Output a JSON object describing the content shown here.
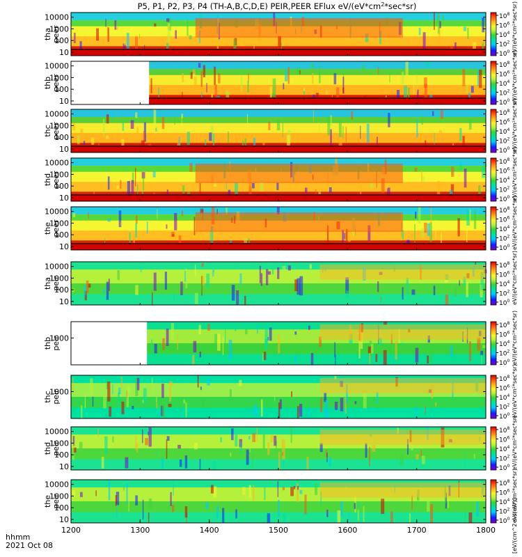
{
  "chart_data": {
    "type": "heatmap",
    "title": "P5, P1, P2, P3, P4 (TH-A,B,C,D,E) PEIR,PEER EFlux eV/(eV*cm",
    "title_sup": "2",
    "title_end": "*sec*sr)",
    "x_ticks": [
      "1200",
      "1300",
      "1400",
      "1500",
      "1600",
      "1700",
      "1800"
    ],
    "x_range": [
      1200,
      1800
    ],
    "x_label_line1": "hhmm",
    "x_label_line2": "2021 Oct 08",
    "log_scale": true,
    "colormap": [
      "#7d00c8",
      "#1a1aff",
      "#00c8ff",
      "#00e0a0",
      "#3cd23c",
      "#b4f03c",
      "#f5f532",
      "#ffb41e",
      "#ff5014",
      "#d20000"
    ],
    "colorbar_tick_labels": [
      "10",
      "10",
      "10",
      "10",
      "10"
    ],
    "colorbar_tick_exps": [
      "8",
      "6",
      "4",
      "2",
      "0"
    ],
    "colorbar_axis_label_top": "eV/(eV*cm²*sec*sr)",
    "colorbar_axis_label_bottom": "[eV/(cm^2-s-sr-eV)]",
    "panels": [
      {
        "probe": "tha",
        "inst": "peer",
        "y_ticks": [
          "10000",
          "1000",
          "100",
          "10"
        ],
        "y_range": [
          5,
          25000
        ],
        "data_start": 1200,
        "bg": "#f5f532"
      },
      {
        "probe": "thb",
        "inst": "peer",
        "y_ticks": [
          "10000",
          "1000",
          "100",
          "10"
        ],
        "y_range": [
          5,
          25000
        ],
        "data_start": 1313,
        "bg": "#ffb41e"
      },
      {
        "probe": "thc",
        "inst": "peer",
        "y_ticks": [
          "10000",
          "1000",
          "100",
          "10"
        ],
        "y_range": [
          5,
          25000
        ],
        "data_start": 1200,
        "bg": "#ffb41e"
      },
      {
        "probe": "thd",
        "inst": "peer",
        "y_ticks": [
          "10000",
          "1000",
          "100",
          "10"
        ],
        "y_range": [
          5,
          25000
        ],
        "data_start": 1200,
        "bg": "#f5f532"
      },
      {
        "probe": "the",
        "inst": "peer",
        "y_ticks": [
          "10000",
          "1000",
          "100",
          "10"
        ],
        "y_range": [
          5,
          25000
        ],
        "data_start": 1200,
        "bg": "#f5f532"
      },
      {
        "probe": "tha",
        "inst": "peir",
        "y_ticks": [
          "10000",
          "1000",
          "100",
          "10"
        ],
        "y_range": [
          5,
          25000
        ],
        "data_start": 1200,
        "bg": "#b4f03c"
      },
      {
        "probe": "thb",
        "inst": "peir",
        "y_ticks": [
          "1000"
        ],
        "y_range": [
          5,
          25000
        ],
        "data_start": 1310,
        "bg": "#3cd23c"
      },
      {
        "probe": "thc",
        "inst": "peir",
        "y_ticks": [
          "1000"
        ],
        "y_range": [
          5,
          25000
        ],
        "data_start": 1200,
        "bg": "#00e0a0"
      },
      {
        "probe": "thd",
        "inst": "peir",
        "y_ticks": [
          "10000",
          "1000",
          "100",
          "10"
        ],
        "y_range": [
          5,
          25000
        ],
        "data_start": 1200,
        "bg": "#b4f03c"
      },
      {
        "probe": "the",
        "inst": "peir",
        "y_ticks": [
          "10000",
          "1000",
          "100",
          "10"
        ],
        "y_range": [
          5,
          25000
        ],
        "data_start": 1200,
        "bg": "#b4f03c"
      }
    ]
  }
}
